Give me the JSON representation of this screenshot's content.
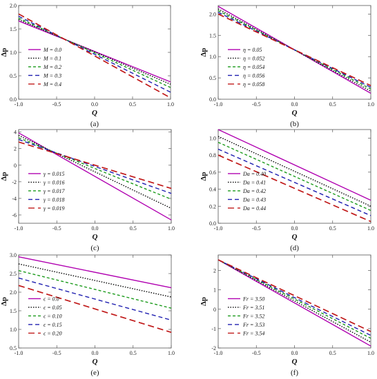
{
  "figure": {
    "caption_note": ""
  },
  "chart_data": [
    {
      "panel": "(a)",
      "type": "line",
      "xlabel": "Q",
      "ylabel": "Δp",
      "xlim": [
        -1,
        1
      ],
      "ylim": [
        0,
        2
      ],
      "xticks": [
        "-1.0",
        "-0.5",
        "0.0",
        "0.5",
        "1.0"
      ],
      "yticks": [
        "0.0",
        "0.5",
        "1.0",
        "1.5",
        "2.0"
      ],
      "legend_position": "lower-left",
      "series": [
        {
          "name": "M = 0.0",
          "x": [
            -1,
            1
          ],
          "y": [
            1.67,
            0.37
          ],
          "color": "#b000b0",
          "dash": "solid"
        },
        {
          "name": "M = 0.1",
          "x": [
            -1,
            1
          ],
          "y": [
            1.7,
            0.32
          ],
          "color": "#000000",
          "dash": "dot"
        },
        {
          "name": "M = 0.2",
          "x": [
            -1,
            1
          ],
          "y": [
            1.73,
            0.25
          ],
          "color": "#1a9a1a",
          "dash": "short"
        },
        {
          "name": "M = 0.3",
          "x": [
            -1,
            1
          ],
          "y": [
            1.77,
            0.15
          ],
          "color": "#1f1fb0",
          "dash": "medium"
        },
        {
          "name": "M = 0.4",
          "x": [
            -1,
            1
          ],
          "y": [
            1.82,
            0.03
          ],
          "color": "#c01818",
          "dash": "long"
        }
      ]
    },
    {
      "panel": "(b)",
      "type": "line",
      "xlabel": "Q",
      "ylabel": "Δp",
      "xlim": [
        -1,
        1
      ],
      "ylim": [
        0,
        2.2
      ],
      "xticks": [
        "-1.0",
        "-0.5",
        "0.0",
        "0.5",
        "1.0"
      ],
      "yticks": [
        "0.0",
        "0.5",
        "1.0",
        "1.5",
        "2.0"
      ],
      "legend_position": "lower-left",
      "series": [
        {
          "name": "η = 0.05",
          "x": [
            -1,
            1
          ],
          "y": [
            2.18,
            0.14
          ],
          "color": "#b000b0",
          "dash": "solid"
        },
        {
          "name": "η = 0.052",
          "x": [
            -1,
            1
          ],
          "y": [
            2.12,
            0.19
          ],
          "color": "#000000",
          "dash": "dot"
        },
        {
          "name": "η = 0.054",
          "x": [
            -1,
            1
          ],
          "y": [
            2.08,
            0.24
          ],
          "color": "#1a9a1a",
          "dash": "short"
        },
        {
          "name": "η = 0.056",
          "x": [
            -1,
            1
          ],
          "y": [
            2.04,
            0.28
          ],
          "color": "#1f1fb0",
          "dash": "medium"
        },
        {
          "name": "η = 0.058",
          "x": [
            -1,
            1
          ],
          "y": [
            2.0,
            0.32
          ],
          "color": "#c01818",
          "dash": "long"
        }
      ]
    },
    {
      "panel": "(c)",
      "type": "line",
      "xlabel": "Q",
      "ylabel": "Δp",
      "xlim": [
        -1,
        1
      ],
      "ylim": [
        -7,
        4.3
      ],
      "xticks": [
        "-1.0",
        "-0.5",
        "0.0",
        "0.5",
        "1.0"
      ],
      "yticks": [
        "-6",
        "-4",
        "-2",
        "0",
        "2",
        "4"
      ],
      "legend_position": "lower-left",
      "series": [
        {
          "name": "γ = 0.015",
          "x": [
            -1,
            1
          ],
          "y": [
            3.9,
            -6.6
          ],
          "color": "#b000b0",
          "dash": "solid"
        },
        {
          "name": "γ = 0.016",
          "x": [
            -1,
            1
          ],
          "y": [
            3.6,
            -5.2
          ],
          "color": "#000000",
          "dash": "dot"
        },
        {
          "name": "γ = 0.017",
          "x": [
            -1,
            1
          ],
          "y": [
            3.3,
            -4.1
          ],
          "color": "#1a9a1a",
          "dash": "short"
        },
        {
          "name": "γ = 0.018",
          "x": [
            -1,
            1
          ],
          "y": [
            3.1,
            -3.4
          ],
          "color": "#1f1fb0",
          "dash": "medium"
        },
        {
          "name": "γ = 0.019",
          "x": [
            -1,
            1
          ],
          "y": [
            2.8,
            -2.8
          ],
          "color": "#c01818",
          "dash": "long"
        }
      ]
    },
    {
      "panel": "(d)",
      "type": "line",
      "xlabel": "Q",
      "ylabel": "Δp",
      "xlim": [
        -1,
        1
      ],
      "ylim": [
        0,
        1.1
      ],
      "xticks": [
        "-1.0",
        "-0.5",
        "0.0",
        "0.5",
        "1.0"
      ],
      "yticks": [
        "0.0",
        "0.2",
        "0.4",
        "0.6",
        "0.8",
        "1.0"
      ],
      "legend_position": "lower-left",
      "series": [
        {
          "name": "Da = 0.40",
          "x": [
            -1,
            1
          ],
          "y": [
            1.1,
            0.27
          ],
          "color": "#b000b0",
          "dash": "solid"
        },
        {
          "name": "Da = 0.41",
          "x": [
            -1,
            1
          ],
          "y": [
            1.02,
            0.2
          ],
          "color": "#000000",
          "dash": "dot"
        },
        {
          "name": "Da = 0.42",
          "x": [
            -1,
            1
          ],
          "y": [
            0.95,
            0.15
          ],
          "color": "#1a9a1a",
          "dash": "short"
        },
        {
          "name": "Da = 0.43",
          "x": [
            -1,
            1
          ],
          "y": [
            0.87,
            0.09
          ],
          "color": "#1f1fb0",
          "dash": "medium"
        },
        {
          "name": "Da = 0.44",
          "x": [
            -1,
            1
          ],
          "y": [
            0.8,
            0.02
          ],
          "color": "#c01818",
          "dash": "long"
        }
      ]
    },
    {
      "panel": "(e)",
      "type": "line",
      "xlabel": "Q",
      "ylabel": "Δp",
      "xlim": [
        -1,
        1
      ],
      "ylim": [
        0.5,
        3.0
      ],
      "xticks": [
        "-1.0",
        "-0.5",
        "0.0",
        "0.5",
        "1.0"
      ],
      "yticks": [
        "0.5",
        "1.0",
        "1.5",
        "2.0",
        "2.5",
        "3.0"
      ],
      "legend_position": "lower-left",
      "series": [
        {
          "name": "ϵ = 0.0",
          "x": [
            -1,
            1
          ],
          "y": [
            2.95,
            2.12
          ],
          "color": "#b000b0",
          "dash": "solid"
        },
        {
          "name": "ϵ = 0.05",
          "x": [
            -1,
            1
          ],
          "y": [
            2.76,
            1.87
          ],
          "color": "#000000",
          "dash": "dot"
        },
        {
          "name": "ϵ = 0.10",
          "x": [
            -1,
            1
          ],
          "y": [
            2.58,
            1.57
          ],
          "color": "#1a9a1a",
          "dash": "short"
        },
        {
          "name": "ϵ = 0.15",
          "x": [
            -1,
            1
          ],
          "y": [
            2.38,
            1.25
          ],
          "color": "#1f1fb0",
          "dash": "medium"
        },
        {
          "name": "ϵ = 0.20",
          "x": [
            -1,
            1
          ],
          "y": [
            2.18,
            0.92
          ],
          "color": "#c01818",
          "dash": "long"
        }
      ]
    },
    {
      "panel": "(f)",
      "type": "line",
      "xlabel": "Q",
      "ylabel": "Δp",
      "xlim": [
        -1,
        1
      ],
      "ylim": [
        -2,
        2.8
      ],
      "xticks": [
        "-1.0",
        "-0.5",
        "0.0",
        "0.5",
        "1.0"
      ],
      "yticks": [
        "-2",
        "-1",
        "0",
        "1",
        "2"
      ],
      "legend_position": "lower-left",
      "series": [
        {
          "name": "Fr = 3.50",
          "x": [
            -1,
            1
          ],
          "y": [
            2.55,
            -1.9
          ],
          "color": "#b000b0",
          "dash": "solid"
        },
        {
          "name": "Fr = 3.51",
          "x": [
            -1,
            1
          ],
          "y": [
            2.55,
            -1.7
          ],
          "color": "#000000",
          "dash": "dot"
        },
        {
          "name": "Fr = 3.52",
          "x": [
            -1,
            1
          ],
          "y": [
            2.55,
            -1.5
          ],
          "color": "#1a9a1a",
          "dash": "short"
        },
        {
          "name": "Fr = 3.53",
          "x": [
            -1,
            1
          ],
          "y": [
            2.55,
            -1.35
          ],
          "color": "#1f1fb0",
          "dash": "medium"
        },
        {
          "name": "Fr = 3.54",
          "x": [
            -1,
            1
          ],
          "y": [
            2.55,
            -1.15
          ],
          "color": "#c01818",
          "dash": "long"
        }
      ]
    }
  ]
}
